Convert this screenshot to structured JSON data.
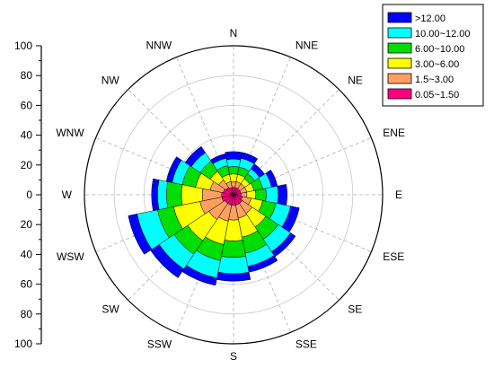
{
  "chart_data": {
    "type": "wind-rose",
    "directions": [
      "N",
      "NNE",
      "NE",
      "ENE",
      "E",
      "ESE",
      "SE",
      "SSE",
      "S",
      "SSW",
      "SW",
      "WSW",
      "W",
      "WNW",
      "NW",
      "NNW"
    ],
    "radial_axis": {
      "ticks_upper": [
        "100",
        "80",
        "60",
        "40",
        "20",
        "0"
      ],
      "ticks_lower": [
        "20",
        "40",
        "60",
        "80",
        "100"
      ],
      "range": [
        0,
        100
      ]
    },
    "legend_position": "top-right",
    "series": [
      {
        "name": "0.05~1.50",
        "color": "#FF0080",
        "values": [
          5,
          5,
          5,
          5,
          5,
          6,
          7,
          7,
          7,
          7,
          7,
          8,
          8,
          7,
          6,
          5
        ]
      },
      {
        "name": "1.5~3.00",
        "color": "#FFA060",
        "values": [
          4,
          4,
          4,
          4,
          4,
          6,
          8,
          9,
          10,
          11,
          13,
          15,
          13,
          9,
          6,
          4
        ]
      },
      {
        "name": "3.00~6.00",
        "color": "#FFFF00",
        "values": [
          5,
          5,
          4,
          5,
          6,
          8,
          11,
          13,
          14,
          16,
          17,
          18,
          14,
          10,
          7,
          5
        ]
      },
      {
        "name": "6.00~10.00",
        "color": "#00DD00",
        "values": [
          5,
          5,
          4,
          6,
          7,
          9,
          10,
          11,
          11,
          11,
          11,
          11,
          10,
          9,
          8,
          6
        ]
      },
      {
        "name": "10.00~12.00",
        "color": "#00FFFF",
        "values": [
          5,
          6,
          4,
          6,
          8,
          10,
          10,
          9,
          11,
          12,
          12,
          14,
          6,
          7,
          7,
          5
        ]
      },
      {
        "name": ">12.00",
        "color": "#0000FF",
        "values": [
          5,
          4,
          4,
          4,
          6,
          6,
          4,
          4,
          5,
          5,
          7,
          6,
          4,
          4,
          5,
          3
        ]
      }
    ]
  }
}
